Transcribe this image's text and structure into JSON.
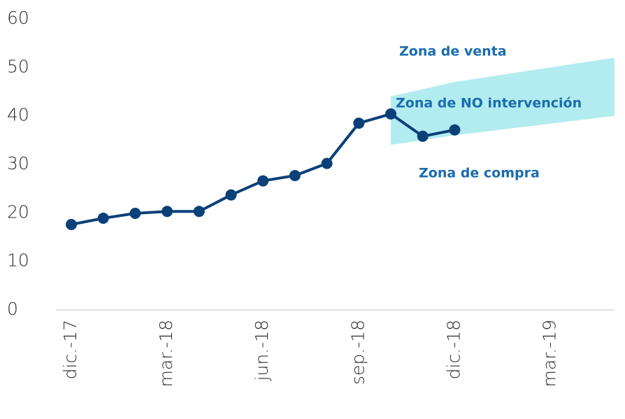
{
  "chart_data": {
    "type": "line",
    "categories": [
      "dic.-17",
      null,
      null,
      "mar.-18",
      null,
      null,
      "jun.-18",
      null,
      null,
      "sep.-18",
      null,
      null,
      "dic.-18",
      null,
      null,
      "mar.-19",
      null,
      null
    ],
    "series": [
      {
        "color": "#0b4079",
        "values": [
          17.6,
          18.9,
          19.9,
          20.3,
          20.3,
          23.7,
          26.6,
          27.7,
          30.2,
          38.5,
          40.4,
          35.8,
          37.1,
          null,
          null,
          null,
          null,
          null
        ]
      }
    ],
    "band": {
      "color": "#b3ecf0",
      "upper": [
        null,
        null,
        null,
        null,
        null,
        null,
        null,
        null,
        null,
        null,
        44,
        45.5,
        47,
        48,
        49,
        50,
        51,
        52
      ],
      "lower": [
        null,
        null,
        null,
        null,
        null,
        null,
        null,
        null,
        null,
        null,
        34,
        35,
        36,
        36.8,
        37.6,
        38.4,
        39.2,
        40
      ]
    },
    "annotations": [
      "Zona de venta",
      "Zona de NO intervención",
      "Zona de compra"
    ],
    "ylim": [
      0,
      60
    ],
    "yticks": [
      0,
      10,
      20,
      30,
      40,
      50,
      60
    ],
    "grid": false
  }
}
